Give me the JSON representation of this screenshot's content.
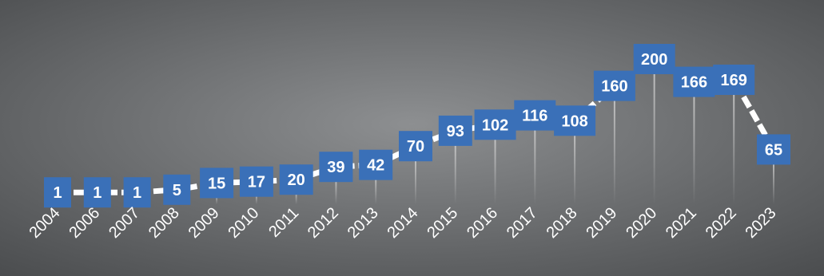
{
  "chart_data": {
    "type": "line",
    "title": "",
    "xlabel": "",
    "ylabel": "",
    "categories": [
      "2004",
      "2006",
      "2007",
      "2008",
      "2009",
      "2010",
      "2011",
      "2012",
      "2013",
      "2014",
      "2015",
      "2016",
      "2017",
      "2018",
      "2019",
      "2020",
      "2021",
      "2022",
      "2023"
    ],
    "values": [
      1,
      1,
      1,
      5,
      15,
      17,
      20,
      39,
      42,
      70,
      93,
      102,
      116,
      108,
      160,
      200,
      166,
      169,
      65
    ],
    "ylim": [
      0,
      200
    ],
    "grid": false,
    "legend": "none",
    "data_labels": true,
    "colors": {
      "background_center": "#8d8f91",
      "background_edge": "#4a4c4e",
      "line": "#ffffff",
      "label_box": "#3a70b8",
      "label_text": "#ffffff",
      "drop_line": "#d0d0d0"
    }
  }
}
